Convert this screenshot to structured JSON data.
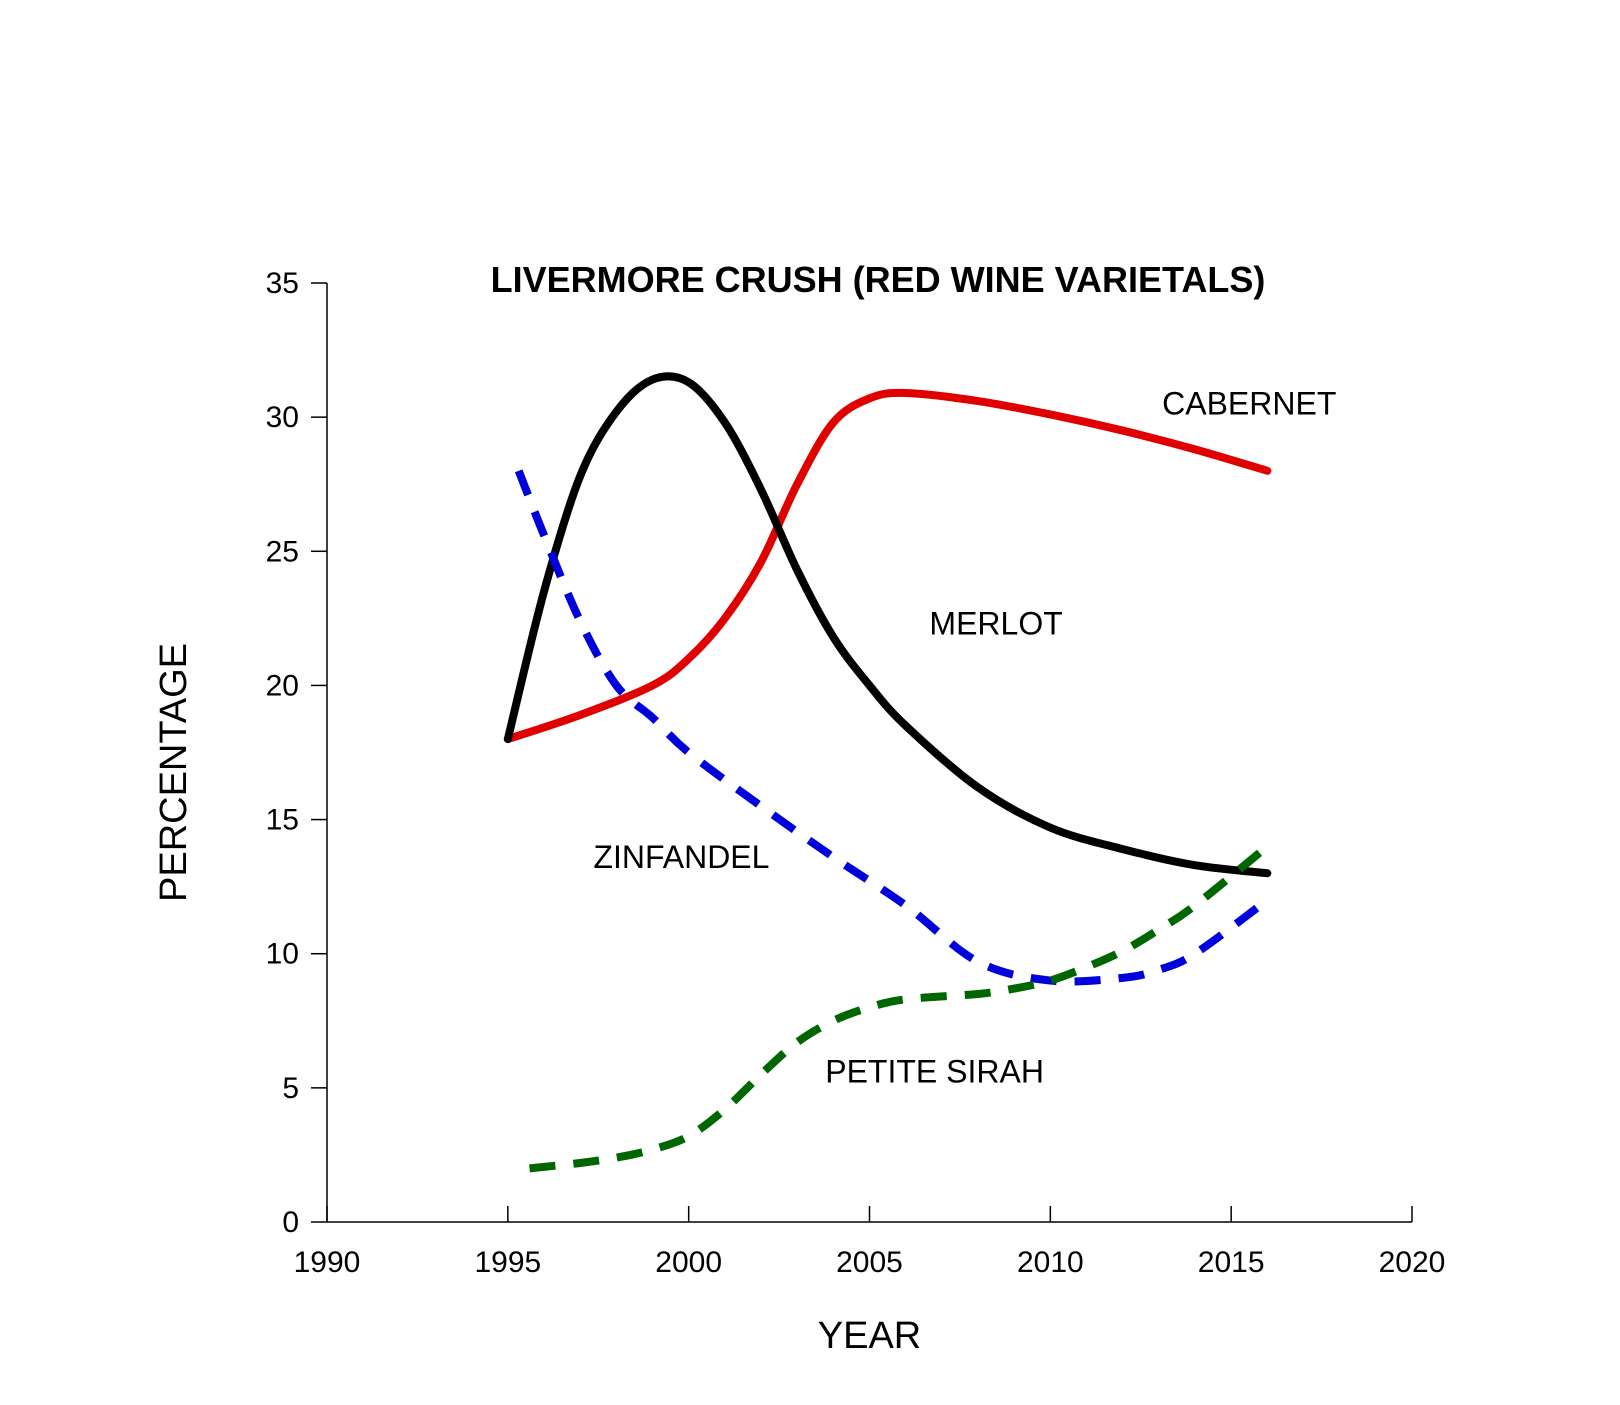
{
  "chart_data": {
    "type": "line",
    "title": "LIVERMORE CRUSH (RED WINE VARIETALS)",
    "xlabel": "YEAR",
    "ylabel": "PERCENTAGE",
    "xlim": [
      1990,
      2020
    ],
    "ylim": [
      0,
      35
    ],
    "xticks": [
      1990,
      1995,
      2000,
      2005,
      2010,
      2015,
      2020
    ],
    "yticks": [
      0,
      5,
      10,
      15,
      20,
      25,
      30,
      35
    ],
    "grid": false,
    "series": [
      {
        "name": "CABERNET",
        "color": "#e00000",
        "dashed": false,
        "x": [
          1995,
          1997,
          1999,
          2000,
          2001,
          2002,
          2003,
          2004,
          2005,
          2006,
          2008,
          2010,
          2012,
          2014,
          2016
        ],
        "y": [
          18.0,
          18.9,
          20.0,
          21.0,
          22.5,
          24.6,
          27.5,
          29.8,
          30.7,
          30.9,
          30.6,
          30.1,
          29.5,
          28.8,
          28.0
        ]
      },
      {
        "name": "MERLOT",
        "color": "#000000",
        "dashed": false,
        "x": [
          1995,
          1996,
          1997,
          1998,
          1999,
          2000,
          2001,
          2002,
          2003,
          2004,
          2005,
          2006,
          2008,
          2010,
          2012,
          2014,
          2016
        ],
        "y": [
          18.0,
          23.5,
          27.8,
          30.2,
          31.4,
          31.3,
          29.8,
          27.3,
          24.3,
          21.8,
          20.0,
          18.5,
          16.2,
          14.7,
          13.9,
          13.3,
          13.0
        ]
      },
      {
        "name": "ZINFANDEL",
        "color": "#0000dd",
        "dashed": true,
        "x": [
          1995.3,
          1996,
          1997,
          1998,
          1999,
          2000,
          2002,
          2004,
          2006,
          2008,
          2010,
          2012,
          2013,
          2014,
          2016
        ],
        "y": [
          28.0,
          25.6,
          22.4,
          20.0,
          18.8,
          17.5,
          15.5,
          13.6,
          11.8,
          9.7,
          9.0,
          9.1,
          9.4,
          10.0,
          12.0
        ]
      },
      {
        "name": "PETITE SIRAH",
        "color": "#006600",
        "dashed": true,
        "x": [
          1995.6,
          1997,
          1998,
          1999,
          2000,
          2001,
          2002,
          2003,
          2004,
          2005,
          2006,
          2008,
          2009,
          2010,
          2011,
          2012,
          2013,
          2014,
          2016
        ],
        "y": [
          2.0,
          2.2,
          2.4,
          2.7,
          3.2,
          4.2,
          5.5,
          6.7,
          7.5,
          8.0,
          8.3,
          8.5,
          8.7,
          9.0,
          9.5,
          10.1,
          10.9,
          11.8,
          14.0
        ]
      }
    ],
    "annotations": [
      {
        "text": "CABERNET",
        "x": 2015.5,
        "y": 30.1
      },
      {
        "text": "MERLOT",
        "x": 2008.5,
        "y": 21.9
      },
      {
        "text": "ZINFANDEL",
        "x": 1999.8,
        "y": 13.2
      },
      {
        "text": "PETITE SIRAH",
        "x": 2006.8,
        "y": 5.2
      }
    ]
  }
}
